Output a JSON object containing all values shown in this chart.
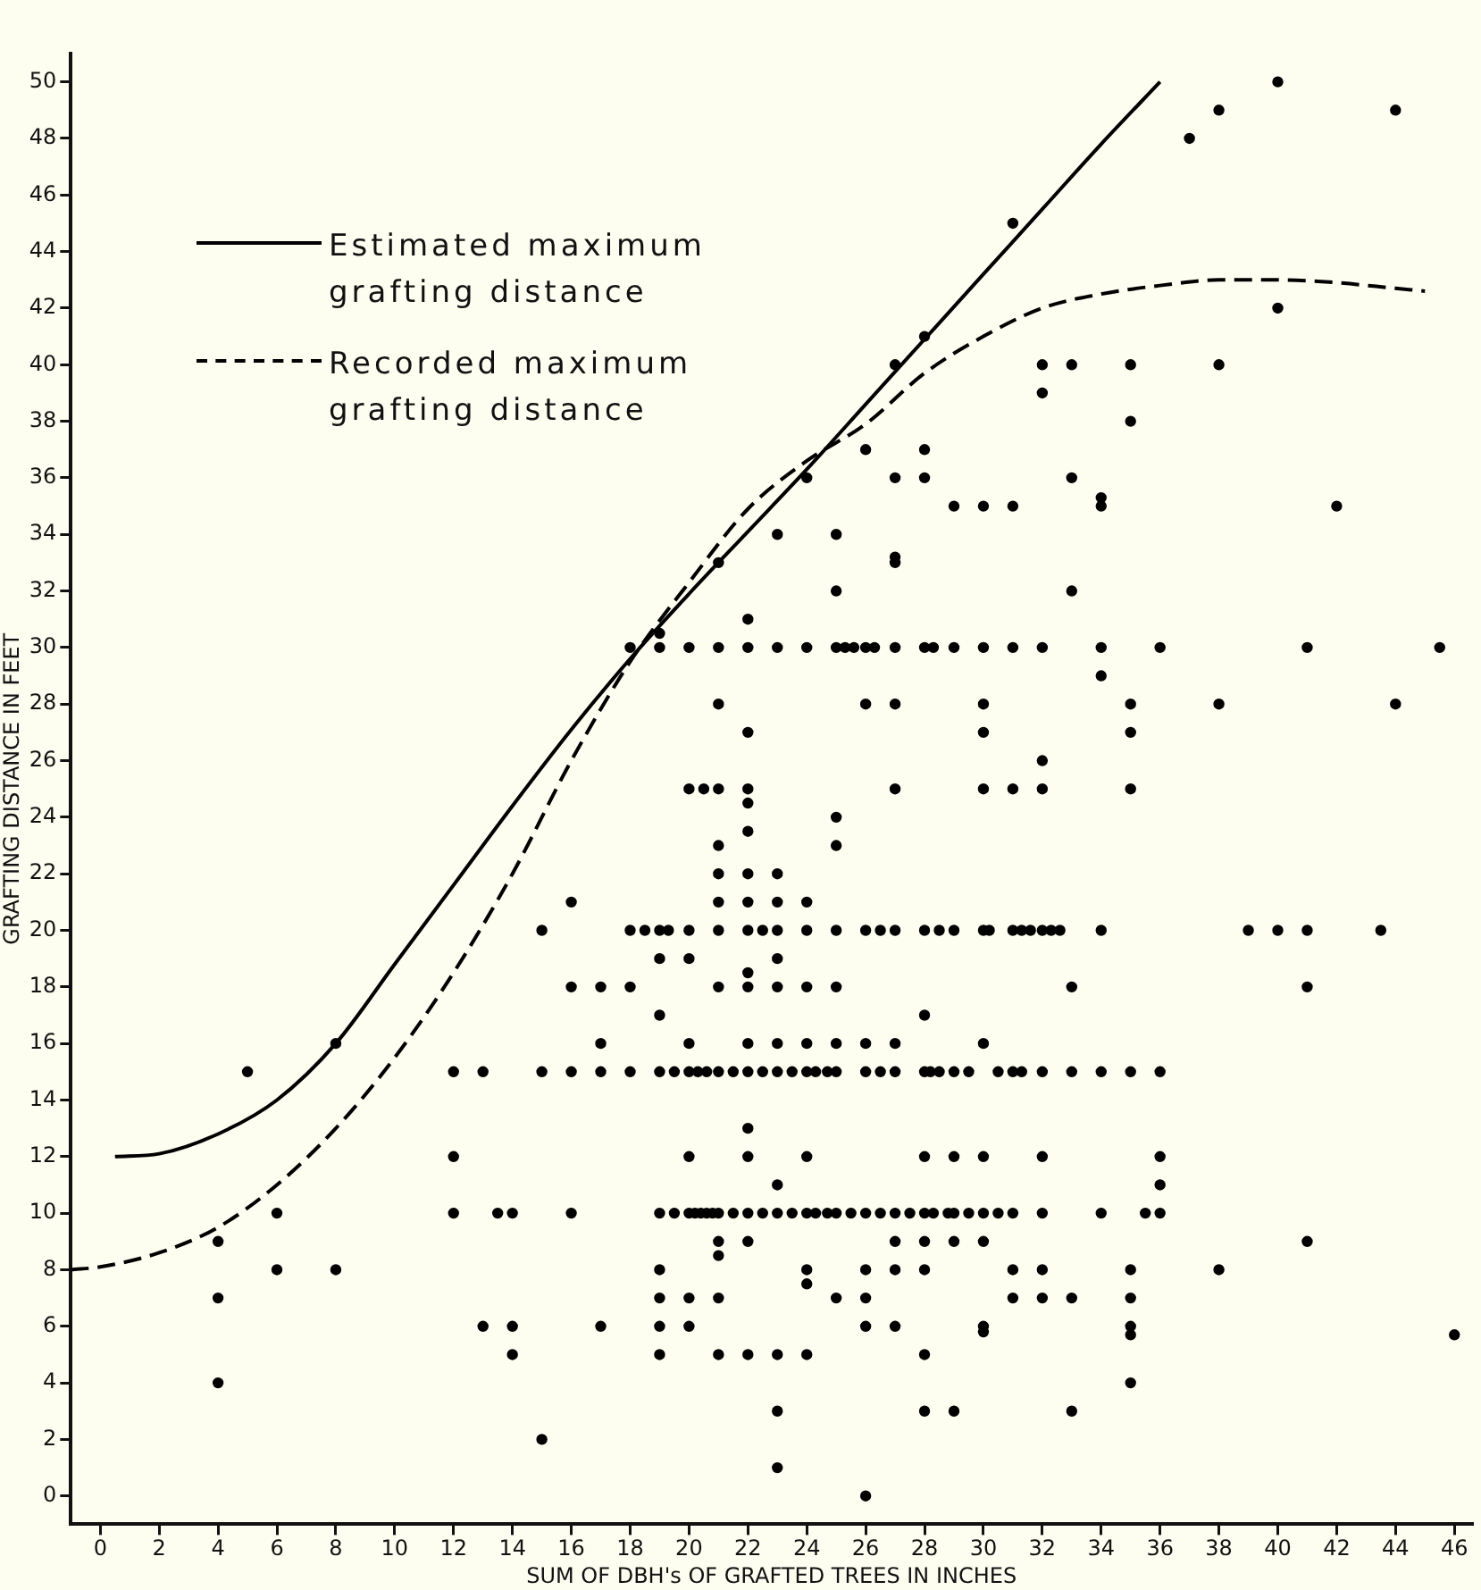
{
  "chart_data": {
    "type": "scatter",
    "xlabel": "SUM OF DBH's OF GRAFTED TREES IN INCHES",
    "ylabel": "GRAFTING DISTANCE IN FEET",
    "xlim": [
      -1,
      46.6
    ],
    "ylim": [
      -1,
      51
    ],
    "xticks": [
      0,
      2,
      4,
      6,
      8,
      10,
      12,
      14,
      16,
      18,
      20,
      22,
      24,
      26,
      28,
      30,
      32,
      34,
      36,
      38,
      40,
      42,
      44,
      46
    ],
    "yticks": [
      0,
      2,
      4,
      6,
      8,
      10,
      12,
      14,
      16,
      18,
      20,
      22,
      24,
      26,
      28,
      30,
      32,
      34,
      36,
      38,
      40,
      42,
      44,
      46,
      48,
      50
    ],
    "grid": false,
    "legend": "top left",
    "series": [
      {
        "name": "Estimated maximum grafting distance",
        "type": "line",
        "line_style": "solid",
        "color": "#000000",
        "x": [
          0.5,
          2,
          4,
          6,
          8,
          10,
          12,
          14,
          16,
          18,
          20,
          22,
          24,
          26,
          28,
          30,
          32,
          34,
          36
        ],
        "values": [
          12,
          12.1,
          12.8,
          14,
          16,
          18.8,
          21.6,
          24.4,
          27.1,
          29.6,
          31.9,
          34.1,
          36.3,
          38.6,
          40.9,
          43.2,
          45.5,
          47.8,
          50
        ]
      },
      {
        "name": "Recorded maximum grafting distance",
        "type": "line",
        "line_style": "dashed",
        "color": "#000000",
        "x": [
          -1,
          0,
          2,
          4,
          6,
          8,
          10,
          12,
          14,
          16,
          18,
          20,
          22,
          24,
          26,
          28,
          30,
          32,
          34,
          36,
          38,
          40,
          42,
          44,
          45
        ],
        "values": [
          8,
          8.1,
          8.6,
          9.5,
          11,
          13,
          15.5,
          18.5,
          22,
          26,
          29.5,
          32.3,
          34.9,
          36.6,
          37.9,
          39.7,
          41,
          42,
          42.5,
          42.8,
          43,
          43,
          42.9,
          42.7,
          42.6
        ]
      },
      {
        "marker": "circle",
        "color": "#000000",
        "x": [
          12,
          13.5,
          14,
          16,
          19,
          19.5,
          20,
          20.2,
          20.4,
          20.6,
          20.8,
          21,
          21.5,
          22,
          22.5,
          23,
          23.5,
          24,
          24.3,
          24.7,
          25,
          25.5,
          26,
          26.5,
          27,
          27.5,
          28,
          28.3,
          28.8,
          29,
          29.5,
          30,
          30.5,
          31,
          32,
          34,
          35.5,
          36,
          12,
          13,
          15,
          16,
          17,
          18,
          19,
          19.5,
          20,
          20.3,
          20.6,
          21,
          21.5,
          22,
          22.5,
          23,
          23.5,
          24,
          24.3,
          24.7,
          25,
          26,
          26.5,
          27,
          28,
          28.2,
          28.5,
          29,
          29.5,
          30.5,
          31,
          31.3,
          32,
          33,
          34,
          35,
          36,
          15,
          18,
          18.5,
          19,
          19.3,
          20,
          21,
          22,
          22.5,
          23,
          24,
          25,
          26,
          26.5,
          27,
          28,
          28.5,
          29,
          30,
          30.2,
          31,
          31.3,
          31.6,
          32,
          32.3,
          32.6,
          34,
          39,
          40,
          41,
          43.5,
          18,
          19,
          20,
          21,
          22,
          23,
          24,
          25,
          25.3,
          25.6,
          26,
          26.3,
          27,
          28,
          28.3,
          29,
          30,
          31,
          32,
          34,
          36,
          41,
          45.5,
          19,
          21,
          22,
          23,
          24,
          25,
          25,
          26,
          27,
          28,
          31,
          37,
          38,
          40,
          44,
          38,
          40,
          32,
          33,
          35,
          32,
          28,
          28,
          27,
          29,
          30,
          31,
          33,
          34,
          34,
          35,
          42,
          33,
          34,
          38,
          44,
          27,
          27,
          22,
          21,
          26,
          27,
          30,
          30,
          35,
          35,
          20,
          20.5,
          21,
          22,
          22,
          22,
          21,
          21,
          22,
          25,
          25,
          27,
          30,
          31,
          32,
          32,
          35,
          21,
          22,
          23,
          24,
          16,
          23,
          18,
          17,
          16,
          19,
          20,
          21,
          22,
          23,
          24,
          25,
          22,
          23,
          17,
          19,
          20,
          22,
          23,
          24,
          25,
          26,
          27,
          28,
          30,
          33,
          41,
          22,
          22,
          20,
          24,
          28,
          29,
          30,
          32,
          36,
          36,
          23,
          21,
          21,
          22,
          27,
          28,
          29,
          30,
          31,
          32,
          35,
          38,
          41,
          19,
          19,
          20,
          21,
          24,
          24,
          26,
          27,
          28,
          31,
          32,
          33,
          35,
          26,
          14,
          13,
          17,
          19,
          20,
          23,
          26,
          27,
          30,
          30,
          35,
          35,
          14,
          19,
          21,
          22,
          24,
          46,
          15,
          23,
          23,
          28,
          29,
          33,
          35,
          26,
          28,
          25,
          4,
          4,
          4,
          5,
          6,
          6,
          8,
          8,
          12
        ],
        "values": [
          10,
          10,
          10,
          10,
          10,
          10,
          10,
          10,
          10,
          10,
          10,
          10,
          10,
          10,
          10,
          10,
          10,
          10,
          10,
          10,
          10,
          10,
          10,
          10,
          10,
          10,
          10,
          10,
          10,
          10,
          10,
          10,
          10,
          10,
          10,
          10,
          10,
          10,
          15,
          15,
          15,
          15,
          15,
          15,
          15,
          15,
          15,
          15,
          15,
          15,
          15,
          15,
          15,
          15,
          15,
          15,
          15,
          15,
          15,
          15,
          15,
          15,
          15,
          15,
          15,
          15,
          15,
          15,
          15,
          15,
          15,
          15,
          15,
          15,
          15,
          20,
          20,
          20,
          20,
          20,
          20,
          20,
          20,
          20,
          20,
          20,
          20,
          20,
          20,
          20,
          20,
          20,
          20,
          20,
          20,
          20,
          20,
          20,
          20,
          20,
          20,
          20,
          20,
          20,
          20,
          20,
          30,
          30,
          30,
          30,
          30,
          30,
          30,
          30,
          30,
          30,
          30,
          30,
          30,
          30,
          30,
          30,
          30,
          30,
          30,
          30,
          30,
          30,
          30,
          30.5,
          33,
          31,
          34,
          36,
          34,
          32,
          37,
          40,
          41,
          45,
          48,
          49,
          50,
          49,
          40,
          42,
          40,
          40,
          40,
          39,
          37,
          36,
          36,
          35,
          35,
          35,
          36,
          35,
          35.3,
          38,
          35,
          32,
          29,
          28,
          28,
          33,
          33.2,
          27,
          28,
          28,
          28,
          28,
          27,
          28,
          27,
          25,
          25,
          25,
          25,
          24.5,
          23.5,
          23,
          22,
          22,
          24,
          23,
          25,
          25,
          25,
          25,
          26,
          25,
          21,
          21,
          21,
          21,
          21,
          22,
          18,
          18,
          18,
          19,
          19,
          18,
          18,
          18,
          18,
          18,
          18.5,
          19,
          16,
          17,
          16,
          16,
          16,
          16,
          16,
          16,
          16,
          17,
          16,
          18,
          18,
          13,
          12,
          12,
          12,
          12,
          12,
          12,
          12,
          12,
          11,
          11,
          9,
          8.5,
          9,
          9,
          9,
          9,
          9,
          8,
          8,
          8,
          8,
          9,
          8,
          7,
          7,
          7,
          8,
          7.5,
          8,
          8,
          8,
          7,
          7,
          7,
          7,
          7,
          6,
          6,
          6,
          6,
          6,
          5,
          6,
          6,
          6,
          5.8,
          6,
          5.7,
          5,
          5,
          5,
          5,
          5,
          5.7,
          2,
          3,
          1,
          3,
          3,
          3,
          4,
          0,
          5,
          7,
          4,
          7,
          9,
          15,
          8,
          10,
          8,
          16,
          12
        ]
      }
    ]
  }
}
